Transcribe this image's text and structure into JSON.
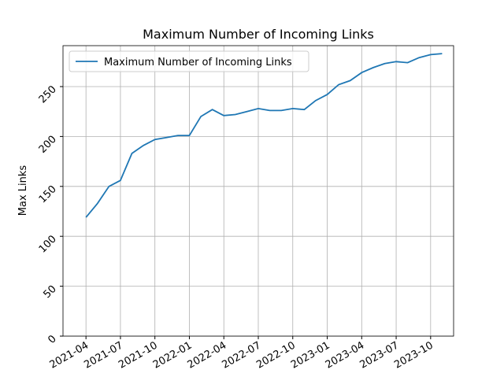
{
  "chart_data": {
    "type": "line",
    "title": "Maximum Number of Incoming Links",
    "y_label": "Max Links",
    "x": [
      "2021-04",
      "2021-05",
      "2021-06",
      "2021-07",
      "2021-08",
      "2021-09",
      "2021-10",
      "2021-11",
      "2021-12",
      "2022-01",
      "2022-02",
      "2022-03",
      "2022-04",
      "2022-05",
      "2022-06",
      "2022-07",
      "2022-08",
      "2022-09",
      "2022-10",
      "2022-11",
      "2022-12",
      "2023-01",
      "2023-02",
      "2023-03",
      "2023-04",
      "2023-05",
      "2023-06",
      "2023-07",
      "2023-08",
      "2023-09",
      "2023-10",
      "2023-11"
    ],
    "series": [
      {
        "name": "Maximum Number of Incoming Links",
        "color": "#1f77b4",
        "values": [
          119,
          133,
          150,
          156,
          183,
          191,
          197,
          199,
          201,
          201,
          220,
          227,
          221,
          222,
          225,
          228,
          226,
          226,
          228,
          227,
          236,
          242,
          252,
          256,
          264,
          269,
          273,
          275,
          274,
          279,
          282,
          283
        ]
      }
    ],
    "xlim": [
      "2021-02",
      "2023-12"
    ],
    "xticks": [
      "2021-04",
      "2021-07",
      "2021-10",
      "2022-01",
      "2022-04",
      "2022-07",
      "2022-10",
      "2023-01",
      "2023-04",
      "2023-07",
      "2023-10"
    ],
    "ylim": [
      0,
      291
    ],
    "yticks": [
      0,
      50,
      100,
      150,
      200,
      250
    ],
    "grid": true,
    "legend": "upper-left"
  }
}
